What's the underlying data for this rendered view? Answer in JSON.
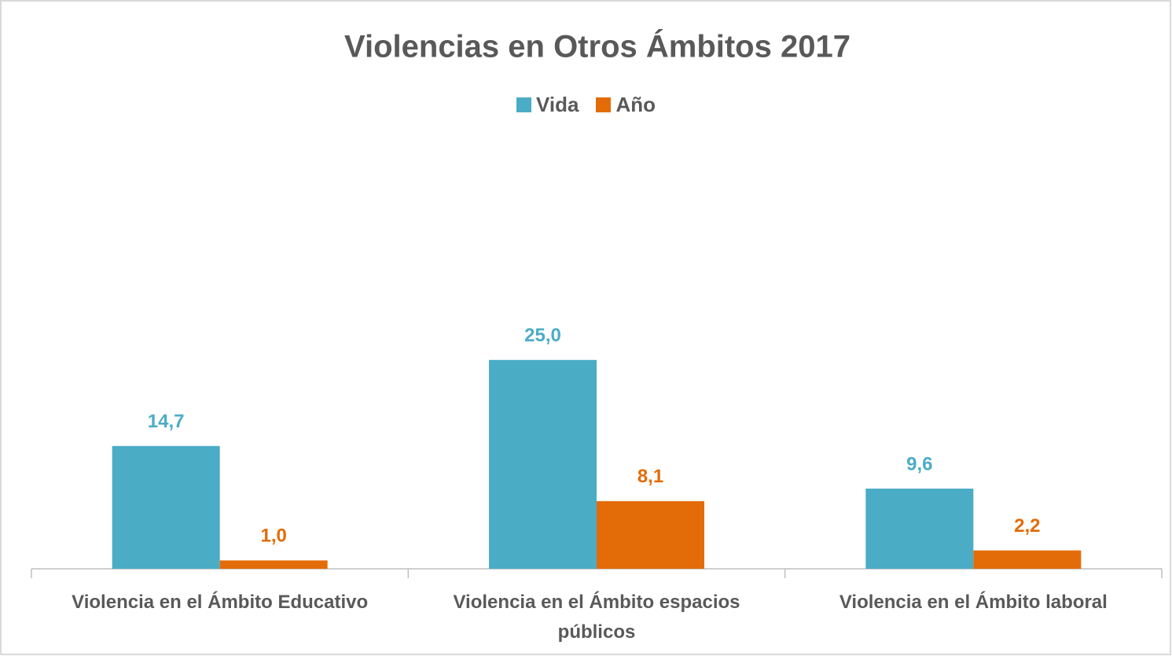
{
  "chart_data": {
    "type": "bar",
    "title": "Violencias en Otros Ámbitos 2017",
    "categories": [
      "Violencia en el Ámbito Educativo",
      "Violencia en el Ámbito espacios públicos",
      "Violencia en el Ámbito laboral"
    ],
    "series": [
      {
        "name": "Vida",
        "color": "#4bacc6",
        "values": [
          14.7,
          25.0,
          9.6
        ],
        "value_labels": [
          "14,7",
          "25,0",
          "9,6"
        ]
      },
      {
        "name": "Año",
        "color": "#e36c09",
        "values": [
          1.0,
          8.1,
          2.2
        ],
        "value_labels": [
          "1,0",
          "8,1",
          "2,2"
        ]
      }
    ],
    "ylim": [
      0,
      30
    ],
    "legend": "top"
  }
}
